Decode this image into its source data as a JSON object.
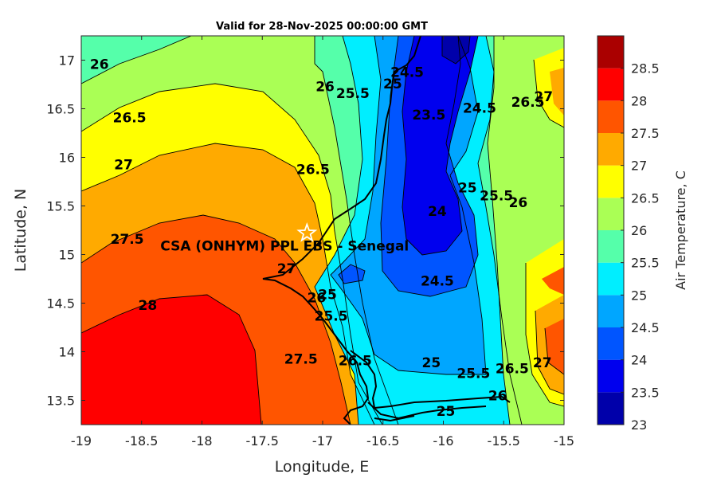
{
  "chart_data": {
    "type": "heatmap",
    "subtype": "filled contour map",
    "title": "Valid for 28-Nov-2025 00:00:00 GMT",
    "xlabel": "Longitude, E",
    "ylabel": "Latitude, N",
    "xlim": [
      -19,
      -15
    ],
    "ylim": [
      13.25,
      17.25
    ],
    "x_ticks": [
      "-19",
      "-18.5",
      "-18",
      "-17.5",
      "-17",
      "-16.5",
      "-16",
      "-15.5",
      "-15"
    ],
    "y_ticks": [
      "13.5",
      "14",
      "14.5",
      "15",
      "15.5",
      "16",
      "16.5",
      "17"
    ],
    "colorbar": {
      "label": "Air Temperature, C",
      "ticks": [
        "23",
        "23.5",
        "24",
        "24.5",
        "25",
        "25.5",
        "26",
        "26.5",
        "27",
        "27.5",
        "28",
        "28.5"
      ],
      "levels": [
        {
          "from": 23.0,
          "to": 23.5,
          "color": "#0000aa"
        },
        {
          "from": 23.5,
          "to": 24.0,
          "color": "#0000ee"
        },
        {
          "from": 24.0,
          "to": 24.5,
          "color": "#0055ff"
        },
        {
          "from": 24.5,
          "to": 25.0,
          "color": "#00a6ff"
        },
        {
          "from": 25.0,
          "to": 25.5,
          "color": "#00eeff"
        },
        {
          "from": 25.5,
          "to": 26.0,
          "color": "#55ffaa"
        },
        {
          "from": 26.0,
          "to": 26.5,
          "color": "#aaff55"
        },
        {
          "from": 26.5,
          "to": 27.0,
          "color": "#ffff00"
        },
        {
          "from": 27.0,
          "to": 27.5,
          "color": "#ffaa00"
        },
        {
          "from": 27.5,
          "to": 28.0,
          "color": "#ff5500"
        },
        {
          "from": 28.0,
          "to": 28.5,
          "color": "#ff0000"
        },
        {
          "from": 28.5,
          "to": 29.0,
          "color": "#aa0000"
        }
      ]
    },
    "site_marker": {
      "lon": -17.13,
      "lat": 15.22,
      "label": "CSA (ONHYM) PPL EBS  - Senegal"
    },
    "contour_labels": [
      {
        "text": "26",
        "lon": -18.85,
        "lat": 16.95
      },
      {
        "text": "26.5",
        "lon": -18.6,
        "lat": 16.4
      },
      {
        "text": "27",
        "lon": -18.65,
        "lat": 15.92
      },
      {
        "text": "27.5",
        "lon": -18.62,
        "lat": 15.15
      },
      {
        "text": "28",
        "lon": -18.45,
        "lat": 14.47
      },
      {
        "text": "26",
        "lon": -16.98,
        "lat": 16.72
      },
      {
        "text": "26.5",
        "lon": -17.08,
        "lat": 15.87
      },
      {
        "text": "27",
        "lon": -17.3,
        "lat": 14.85
      },
      {
        "text": "26",
        "lon": -17.05,
        "lat": 14.55
      },
      {
        "text": "27.5",
        "lon": -17.18,
        "lat": 13.92
      },
      {
        "text": "25.5",
        "lon": -16.75,
        "lat": 16.65
      },
      {
        "text": "25",
        "lon": -16.42,
        "lat": 16.75
      },
      {
        "text": "24.5",
        "lon": -16.3,
        "lat": 16.87
      },
      {
        "text": "23.5",
        "lon": -16.12,
        "lat": 16.43
      },
      {
        "text": "24.5",
        "lon": -15.7,
        "lat": 16.5
      },
      {
        "text": "25",
        "lon": -15.8,
        "lat": 15.68
      },
      {
        "text": "25.5",
        "lon": -15.56,
        "lat": 15.6
      },
      {
        "text": "26",
        "lon": -15.38,
        "lat": 15.53
      },
      {
        "text": "26.5",
        "lon": -15.3,
        "lat": 16.56
      },
      {
        "text": "27",
        "lon": -15.17,
        "lat": 16.62
      },
      {
        "text": "24",
        "lon": -16.05,
        "lat": 15.44
      },
      {
        "text": "24.5",
        "lon": -16.05,
        "lat": 14.72
      },
      {
        "text": "25",
        "lon": -16.96,
        "lat": 14.58
      },
      {
        "text": "25.5",
        "lon": -16.93,
        "lat": 14.36
      },
      {
        "text": "26.5",
        "lon": -16.73,
        "lat": 13.9
      },
      {
        "text": "25",
        "lon": -16.1,
        "lat": 13.88
      },
      {
        "text": "25.5",
        "lon": -15.75,
        "lat": 13.77
      },
      {
        "text": "26.5",
        "lon": -15.43,
        "lat": 13.82
      },
      {
        "text": "27",
        "lon": -15.18,
        "lat": 13.88
      },
      {
        "text": "26",
        "lon": -15.55,
        "lat": 13.54
      },
      {
        "text": "25",
        "lon": -15.98,
        "lat": 13.38
      }
    ]
  }
}
